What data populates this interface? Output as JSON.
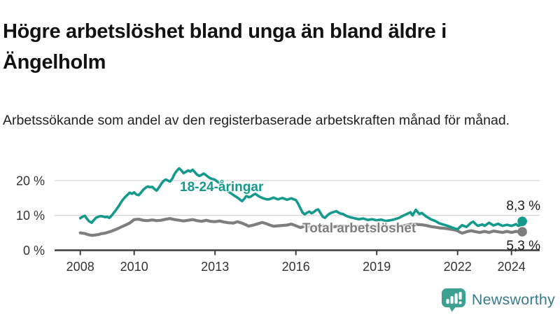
{
  "header": {
    "title": "Högre arbetslöshet bland unga än bland äldre i Ängelholm",
    "subtitle": "Arbetssökande som andel av den registerbaserade arbetskraften månad för månad."
  },
  "chart_data": {
    "type": "line",
    "unit": "%",
    "x_axis": {
      "range": [
        2008,
        2024.4
      ],
      "ticks": [
        {
          "value": 2008,
          "label": "2008"
        },
        {
          "value": 2010,
          "label": "2010"
        },
        {
          "value": 2013,
          "label": "2013"
        },
        {
          "value": 2016,
          "label": "2016"
        },
        {
          "value": 2019,
          "label": "2019"
        },
        {
          "value": 2022,
          "label": "2022"
        },
        {
          "value": 2024,
          "label": "2024"
        }
      ]
    },
    "y_axis": {
      "range": [
        0,
        24.5
      ],
      "gridlines": true,
      "ticks": [
        {
          "value": 0,
          "label": "0 %"
        },
        {
          "value": 10,
          "label": "10 %"
        },
        {
          "value": 20,
          "label": "20 %"
        }
      ]
    },
    "colors": {
      "youth": "#149a8d",
      "total": "#7e7e7e",
      "grid": "#d8d8d8",
      "axis": "#3d3d3d"
    },
    "series": [
      {
        "id": "youth",
        "name": "18-24-åringar",
        "color": "#149a8d",
        "end_value": 8.3,
        "end_label": "8,3 %",
        "points": [
          [
            2008.0,
            9.2
          ],
          [
            2008.08,
            9.6
          ],
          [
            2008.17,
            9.9
          ],
          [
            2008.25,
            9.0
          ],
          [
            2008.33,
            8.3
          ],
          [
            2008.42,
            7.9
          ],
          [
            2008.5,
            8.6
          ],
          [
            2008.58,
            9.3
          ],
          [
            2008.67,
            9.6
          ],
          [
            2008.75,
            9.8
          ],
          [
            2008.83,
            9.7
          ],
          [
            2008.92,
            9.5
          ],
          [
            2009.0,
            9.6
          ],
          [
            2009.08,
            9.3
          ],
          [
            2009.17,
            10.0
          ],
          [
            2009.25,
            10.8
          ],
          [
            2009.33,
            11.6
          ],
          [
            2009.42,
            12.6
          ],
          [
            2009.5,
            13.6
          ],
          [
            2009.58,
            14.5
          ],
          [
            2009.67,
            15.3
          ],
          [
            2009.75,
            15.9
          ],
          [
            2009.83,
            16.5
          ],
          [
            2009.92,
            16.2
          ],
          [
            2010.0,
            16.6
          ],
          [
            2010.08,
            16.0
          ],
          [
            2010.17,
            15.8
          ],
          [
            2010.25,
            16.5
          ],
          [
            2010.33,
            17.3
          ],
          [
            2010.42,
            17.9
          ],
          [
            2010.5,
            18.3
          ],
          [
            2010.58,
            18.1
          ],
          [
            2010.67,
            18.2
          ],
          [
            2010.75,
            17.6
          ],
          [
            2010.83,
            17.1
          ],
          [
            2010.92,
            18.0
          ],
          [
            2011.0,
            19.0
          ],
          [
            2011.08,
            19.8
          ],
          [
            2011.17,
            20.3
          ],
          [
            2011.25,
            20.0
          ],
          [
            2011.33,
            19.7
          ],
          [
            2011.42,
            20.6
          ],
          [
            2011.5,
            21.9
          ],
          [
            2011.58,
            22.8
          ],
          [
            2011.67,
            23.5
          ],
          [
            2011.75,
            22.9
          ],
          [
            2011.83,
            22.1
          ],
          [
            2011.92,
            22.5
          ],
          [
            2012.0,
            22.9
          ],
          [
            2012.08,
            22.6
          ],
          [
            2012.17,
            23.1
          ],
          [
            2012.25,
            22.4
          ],
          [
            2012.33,
            21.7
          ],
          [
            2012.42,
            21.3
          ],
          [
            2012.5,
            21.6
          ],
          [
            2012.58,
            22.0
          ],
          [
            2012.67,
            21.5
          ],
          [
            2012.75,
            21.0
          ],
          [
            2012.83,
            20.6
          ],
          [
            2012.92,
            20.4
          ],
          [
            2013.0,
            20.2
          ],
          [
            2013.17,
            19.2
          ],
          [
            2013.33,
            18.0
          ],
          [
            2013.5,
            16.8
          ],
          [
            2013.67,
            15.9
          ],
          [
            2013.83,
            15.1
          ],
          [
            2014.0,
            14.1
          ],
          [
            2014.08,
            14.7
          ],
          [
            2014.17,
            15.7
          ],
          [
            2014.25,
            15.2
          ],
          [
            2014.33,
            15.4
          ],
          [
            2014.42,
            15.9
          ],
          [
            2014.5,
            16.2
          ],
          [
            2014.58,
            15.7
          ],
          [
            2014.67,
            15.3
          ],
          [
            2014.75,
            15.0
          ],
          [
            2014.83,
            14.8
          ],
          [
            2014.92,
            14.6
          ],
          [
            2015.0,
            14.6
          ],
          [
            2015.17,
            15.1
          ],
          [
            2015.33,
            14.6
          ],
          [
            2015.5,
            15.0
          ],
          [
            2015.67,
            14.5
          ],
          [
            2015.83,
            14.9
          ],
          [
            2015.92,
            14.6
          ],
          [
            2016.0,
            14.4
          ],
          [
            2016.08,
            13.4
          ],
          [
            2016.17,
            12.0
          ],
          [
            2016.25,
            10.8
          ],
          [
            2016.33,
            10.3
          ],
          [
            2016.42,
            10.8
          ],
          [
            2016.5,
            11.1
          ],
          [
            2016.58,
            10.6
          ],
          [
            2016.67,
            11.0
          ],
          [
            2016.75,
            11.5
          ],
          [
            2016.83,
            11.7
          ],
          [
            2016.92,
            10.6
          ],
          [
            2017.0,
            9.6
          ],
          [
            2017.08,
            9.3
          ],
          [
            2017.17,
            10.0
          ],
          [
            2017.25,
            10.5
          ],
          [
            2017.33,
            10.8
          ],
          [
            2017.42,
            11.0
          ],
          [
            2017.5,
            11.2
          ],
          [
            2017.58,
            10.8
          ],
          [
            2017.67,
            10.5
          ],
          [
            2017.75,
            10.4
          ],
          [
            2017.83,
            10.0
          ],
          [
            2017.92,
            9.7
          ],
          [
            2018.0,
            9.5
          ],
          [
            2018.17,
            9.2
          ],
          [
            2018.33,
            8.9
          ],
          [
            2018.5,
            9.1
          ],
          [
            2018.67,
            8.7
          ],
          [
            2018.83,
            8.9
          ],
          [
            2019.0,
            8.6
          ],
          [
            2019.17,
            8.8
          ],
          [
            2019.33,
            8.4
          ],
          [
            2019.5,
            8.6
          ],
          [
            2019.67,
            8.9
          ],
          [
            2019.83,
            9.3
          ],
          [
            2020.0,
            10.0
          ],
          [
            2020.17,
            10.6
          ],
          [
            2020.25,
            10.9
          ],
          [
            2020.33,
            10.0
          ],
          [
            2020.45,
            11.6
          ],
          [
            2020.58,
            10.4
          ],
          [
            2020.67,
            10.7
          ],
          [
            2020.83,
            9.7
          ],
          [
            2020.92,
            9.3
          ],
          [
            2021.0,
            8.9
          ],
          [
            2021.17,
            8.4
          ],
          [
            2021.33,
            7.7
          ],
          [
            2021.5,
            7.3
          ],
          [
            2021.67,
            6.9
          ],
          [
            2021.83,
            6.4
          ],
          [
            2022.0,
            6.0
          ],
          [
            2022.08,
            6.6
          ],
          [
            2022.17,
            7.2
          ],
          [
            2022.25,
            6.9
          ],
          [
            2022.33,
            6.7
          ],
          [
            2022.42,
            7.3
          ],
          [
            2022.5,
            7.9
          ],
          [
            2022.58,
            8.2
          ],
          [
            2022.67,
            7.5
          ],
          [
            2022.75,
            7.0
          ],
          [
            2022.83,
            7.2
          ],
          [
            2022.92,
            7.4
          ],
          [
            2023.0,
            7.0
          ],
          [
            2023.17,
            7.9
          ],
          [
            2023.33,
            7.1
          ],
          [
            2023.5,
            7.6
          ],
          [
            2023.67,
            7.0
          ],
          [
            2023.83,
            7.3
          ],
          [
            2024.0,
            7.0
          ],
          [
            2024.08,
            7.2
          ],
          [
            2024.17,
            7.5
          ],
          [
            2024.25,
            7.0
          ],
          [
            2024.33,
            7.2
          ],
          [
            2024.4,
            8.3
          ]
        ]
      },
      {
        "id": "total",
        "name": "Total arbetslöshet",
        "color": "#7e7e7e",
        "end_value": 5.3,
        "end_label": "5,3 %",
        "points": [
          [
            2008.0,
            5.0
          ],
          [
            2008.08,
            4.9
          ],
          [
            2008.17,
            4.8
          ],
          [
            2008.25,
            4.6
          ],
          [
            2008.33,
            4.4
          ],
          [
            2008.42,
            4.3
          ],
          [
            2008.5,
            4.3
          ],
          [
            2008.58,
            4.4
          ],
          [
            2008.67,
            4.5
          ],
          [
            2008.75,
            4.7
          ],
          [
            2008.83,
            4.8
          ],
          [
            2008.92,
            4.9
          ],
          [
            2009.0,
            5.1
          ],
          [
            2009.17,
            5.5
          ],
          [
            2009.33,
            6.0
          ],
          [
            2009.5,
            6.6
          ],
          [
            2009.67,
            7.2
          ],
          [
            2009.83,
            7.8
          ],
          [
            2010.0,
            8.8
          ],
          [
            2010.17,
            8.9
          ],
          [
            2010.33,
            8.6
          ],
          [
            2010.5,
            8.5
          ],
          [
            2010.67,
            8.7
          ],
          [
            2010.83,
            8.5
          ],
          [
            2011.0,
            8.6
          ],
          [
            2011.17,
            8.9
          ],
          [
            2011.33,
            9.1
          ],
          [
            2011.5,
            8.8
          ],
          [
            2011.67,
            8.6
          ],
          [
            2011.83,
            8.4
          ],
          [
            2012.0,
            8.6
          ],
          [
            2012.17,
            8.8
          ],
          [
            2012.33,
            8.5
          ],
          [
            2012.5,
            8.3
          ],
          [
            2012.67,
            8.6
          ],
          [
            2012.83,
            8.3
          ],
          [
            2013.0,
            8.2
          ],
          [
            2013.17,
            8.4
          ],
          [
            2013.33,
            8.1
          ],
          [
            2013.5,
            7.9
          ],
          [
            2013.67,
            7.8
          ],
          [
            2013.83,
            8.2
          ],
          [
            2014.0,
            7.8
          ],
          [
            2014.17,
            7.2
          ],
          [
            2014.25,
            6.9
          ],
          [
            2014.42,
            7.2
          ],
          [
            2014.58,
            7.6
          ],
          [
            2014.75,
            8.0
          ],
          [
            2014.92,
            7.6
          ],
          [
            2015.0,
            7.3
          ],
          [
            2015.17,
            6.9
          ],
          [
            2015.33,
            7.0
          ],
          [
            2015.5,
            7.1
          ],
          [
            2015.67,
            7.2
          ],
          [
            2015.83,
            7.5
          ],
          [
            2016.0,
            7.0
          ],
          [
            2016.17,
            6.5
          ],
          [
            2016.33,
            6.9
          ],
          [
            2016.5,
            6.7
          ],
          [
            2016.67,
            6.5
          ],
          [
            2016.83,
            6.8
          ],
          [
            2017.0,
            7.0
          ],
          [
            2017.17,
            6.8
          ],
          [
            2017.33,
            6.6
          ],
          [
            2017.5,
            6.8
          ],
          [
            2017.67,
            7.0
          ],
          [
            2017.83,
            6.8
          ],
          [
            2018.0,
            6.9
          ],
          [
            2018.25,
            6.7
          ],
          [
            2018.5,
            6.8
          ],
          [
            2018.75,
            6.6
          ],
          [
            2019.0,
            6.8
          ],
          [
            2019.25,
            6.9
          ],
          [
            2019.5,
            6.7
          ],
          [
            2019.75,
            6.9
          ],
          [
            2020.0,
            7.0
          ],
          [
            2020.17,
            7.3
          ],
          [
            2020.33,
            7.5
          ],
          [
            2020.5,
            7.4
          ],
          [
            2020.67,
            7.3
          ],
          [
            2020.83,
            7.1
          ],
          [
            2021.0,
            6.8
          ],
          [
            2021.17,
            6.6
          ],
          [
            2021.33,
            6.4
          ],
          [
            2021.5,
            6.3
          ],
          [
            2021.67,
            6.1
          ],
          [
            2021.83,
            5.9
          ],
          [
            2022.0,
            5.6
          ],
          [
            2022.08,
            5.2
          ],
          [
            2022.17,
            4.9
          ],
          [
            2022.33,
            5.3
          ],
          [
            2022.5,
            5.6
          ],
          [
            2022.67,
            5.3
          ],
          [
            2022.83,
            5.1
          ],
          [
            2023.0,
            5.4
          ],
          [
            2023.17,
            5.1
          ],
          [
            2023.33,
            5.5
          ],
          [
            2023.5,
            5.3
          ],
          [
            2023.67,
            5.1
          ],
          [
            2023.83,
            5.4
          ],
          [
            2024.0,
            5.1
          ],
          [
            2024.17,
            5.4
          ],
          [
            2024.33,
            5.2
          ],
          [
            2024.4,
            5.3
          ]
        ]
      }
    ]
  },
  "footer": {
    "brand": "Newsworthy",
    "brand_icon": "bar-chart-speech-bubble-icon",
    "brand_color": "#3ca192"
  }
}
